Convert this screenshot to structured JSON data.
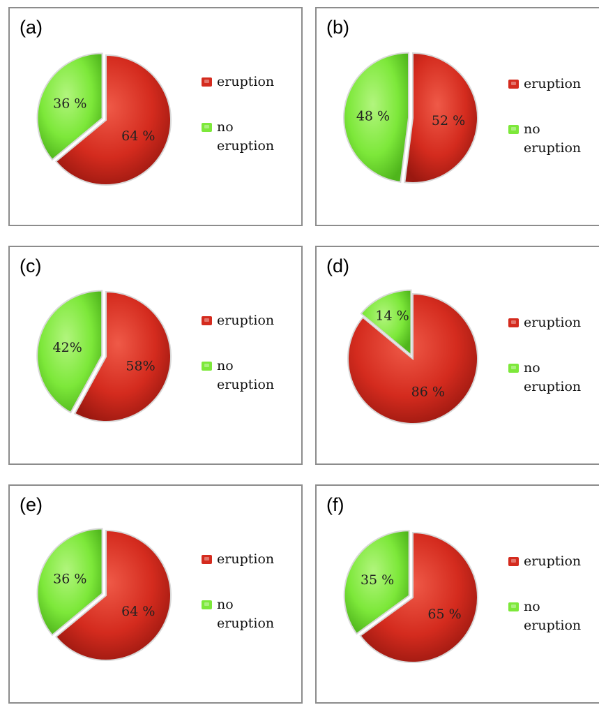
{
  "colors": {
    "eruption": "#d42b1e",
    "no_eruption": "#7de83a"
  },
  "chart_data": [
    {
      "type": "pie",
      "panel": "(a)",
      "slices": [
        {
          "name": "eruption",
          "value": 64,
          "label": "64 %"
        },
        {
          "name": "no eruption",
          "value": 36,
          "label": "36 %"
        }
      ],
      "legend": [
        "eruption",
        "no eruption"
      ],
      "legend_placement": "right"
    },
    {
      "type": "pie",
      "panel": "(b)",
      "slices": [
        {
          "name": "eruption",
          "value": 52,
          "label": "52 %"
        },
        {
          "name": "no eruption",
          "value": 48,
          "label": "48 %"
        }
      ],
      "legend": [
        "eruption",
        "no eruption"
      ],
      "legend_placement": "right"
    },
    {
      "type": "pie",
      "panel": "(c)",
      "slices": [
        {
          "name": "eruption",
          "value": 58,
          "label": "58%"
        },
        {
          "name": "no eruption",
          "value": 42,
          "label": "42%"
        }
      ],
      "legend": [
        "eruption",
        "no eruption"
      ],
      "legend_placement": "right"
    },
    {
      "type": "pie",
      "panel": "(d)",
      "slices": [
        {
          "name": "eruption",
          "value": 86,
          "label": "86 %"
        },
        {
          "name": "no eruption",
          "value": 14,
          "label": "14 %"
        }
      ],
      "legend": [
        "eruption",
        "no eruption"
      ],
      "legend_placement": "right"
    },
    {
      "type": "pie",
      "panel": "(e)",
      "slices": [
        {
          "name": "eruption",
          "value": 64,
          "label": "64 %"
        },
        {
          "name": "no eruption",
          "value": 36,
          "label": "36 %"
        }
      ],
      "legend": [
        "eruption",
        "no eruption"
      ],
      "legend_placement": "right"
    },
    {
      "type": "pie",
      "panel": "(f)",
      "slices": [
        {
          "name": "eruption",
          "value": 65,
          "label": "65 %"
        },
        {
          "name": "no eruption",
          "value": 35,
          "label": "35 %"
        }
      ],
      "legend": [
        "eruption",
        "no eruption"
      ],
      "legend_placement": "right"
    }
  ]
}
